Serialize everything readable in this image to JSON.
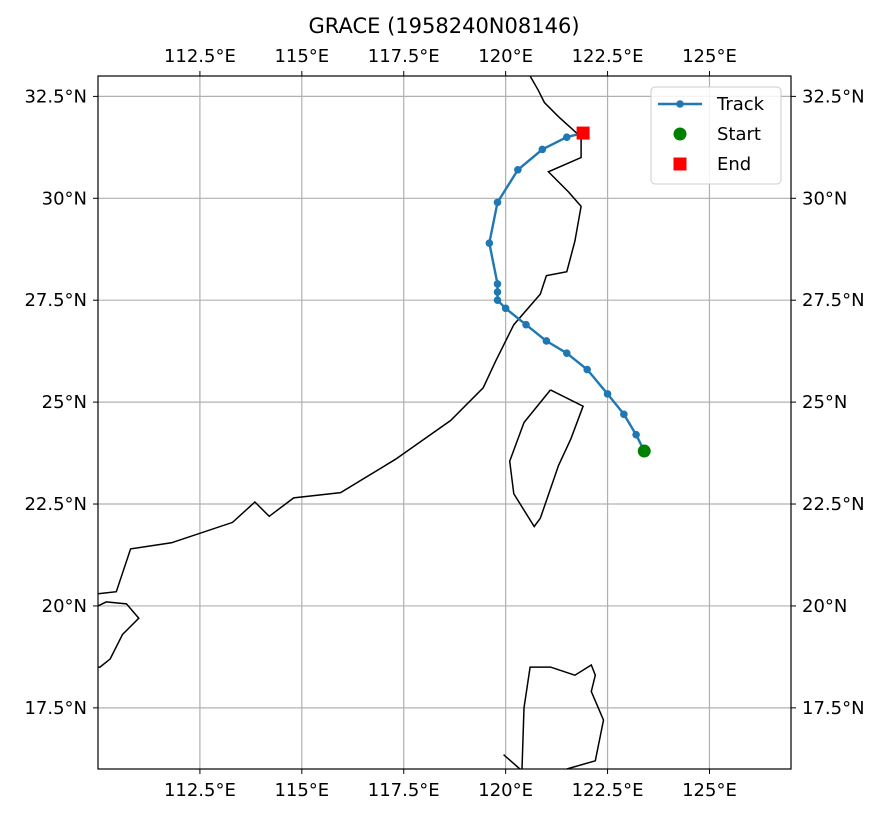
{
  "chart_data": {
    "type": "line",
    "title": "GRACE (1958240N08146)",
    "xlim": [
      110,
      127
    ],
    "ylim": [
      16,
      33
    ],
    "grid": true,
    "x_ticks": [
      112.5,
      115,
      117.5,
      120,
      122.5,
      125
    ],
    "x_tick_labels": [
      "112.5°E",
      "115°E",
      "117.5°E",
      "120°E",
      "122.5°E",
      "125°E"
    ],
    "y_ticks": [
      17.5,
      20,
      22.5,
      25,
      27.5,
      30,
      32.5
    ],
    "y_tick_labels": [
      "17.5°N",
      "20°N",
      "22.5°N",
      "25°N",
      "27.5°N",
      "30°N",
      "32.5°N"
    ],
    "legend": {
      "position": "top-right",
      "entries": [
        {
          "label": "Track",
          "marker": "line-dot",
          "color": "#1f77b4"
        },
        {
          "label": "Start",
          "marker": "circle",
          "color": "#008000"
        },
        {
          "label": "End",
          "marker": "square",
          "color": "#ff0000"
        }
      ]
    },
    "series": [
      {
        "name": "Track",
        "color": "#1f77b4",
        "lon": [
          123.4,
          123.2,
          122.9,
          122.5,
          122.0,
          121.5,
          121.0,
          120.5,
          120.0,
          119.8,
          119.8,
          119.8,
          119.6,
          119.8,
          120.3,
          120.9,
          121.5,
          121.9
        ],
        "lat": [
          23.8,
          24.2,
          24.7,
          25.2,
          25.8,
          26.2,
          26.5,
          26.9,
          27.3,
          27.5,
          27.7,
          27.9,
          28.9,
          29.9,
          30.7,
          31.2,
          31.5,
          31.6
        ]
      }
    ],
    "start": {
      "lon": 123.4,
      "lat": 23.8,
      "color": "#008000"
    },
    "end": {
      "lon": 121.9,
      "lat": 31.6,
      "color": "#ff0000"
    },
    "coastlines": [
      [
        [
          110,
          20.3
        ],
        [
          110.45,
          20.35
        ],
        [
          110.8,
          21.4
        ],
        [
          111.8,
          21.55
        ],
        [
          113.3,
          22.05
        ],
        [
          113.85,
          22.55
        ],
        [
          114.2,
          22.2
        ],
        [
          114.8,
          22.65
        ],
        [
          115.95,
          22.78
        ],
        [
          117.3,
          23.6
        ],
        [
          118.65,
          24.55
        ],
        [
          119.45,
          25.35
        ],
        [
          119.75,
          26.0
        ],
        [
          120.2,
          26.9
        ],
        [
          120.85,
          27.65
        ],
        [
          121.0,
          28.1
        ],
        [
          121.5,
          28.2
        ],
        [
          121.7,
          28.95
        ],
        [
          121.85,
          29.8
        ],
        [
          121.55,
          30.15
        ],
        [
          121.05,
          30.65
        ],
        [
          121.85,
          31.0
        ],
        [
          121.85,
          31.5
        ],
        [
          121.3,
          32.0
        ],
        [
          120.95,
          32.35
        ],
        [
          120.8,
          32.65
        ],
        [
          120.6,
          33.0
        ]
      ],
      [
        [
          121.1,
          25.3
        ],
        [
          121.9,
          24.9
        ],
        [
          121.6,
          24.1
        ],
        [
          121.3,
          23.45
        ],
        [
          120.85,
          22.15
        ],
        [
          120.7,
          21.95
        ],
        [
          120.2,
          22.75
        ],
        [
          120.1,
          23.55
        ],
        [
          120.45,
          24.5
        ],
        [
          121.1,
          25.3
        ]
      ],
      [
        [
          110.0,
          20.0
        ],
        [
          110.2,
          20.1
        ],
        [
          110.7,
          20.05
        ],
        [
          111.0,
          19.7
        ],
        [
          110.6,
          19.3
        ],
        [
          110.3,
          18.7
        ],
        [
          110.05,
          18.5
        ],
        [
          110.0,
          18.5
        ]
      ],
      [
        [
          119.95,
          16.35
        ],
        [
          120.35,
          16.0
        ]
      ],
      [
        [
          120.4,
          16.0
        ],
        [
          120.45,
          17.5
        ],
        [
          120.6,
          18.5
        ],
        [
          121.1,
          18.5
        ],
        [
          121.7,
          18.3
        ],
        [
          122.1,
          18.55
        ],
        [
          122.2,
          18.3
        ],
        [
          122.1,
          17.9
        ],
        [
          122.4,
          17.2
        ],
        [
          122.2,
          16.2
        ],
        [
          121.5,
          16.0
        ]
      ]
    ]
  }
}
